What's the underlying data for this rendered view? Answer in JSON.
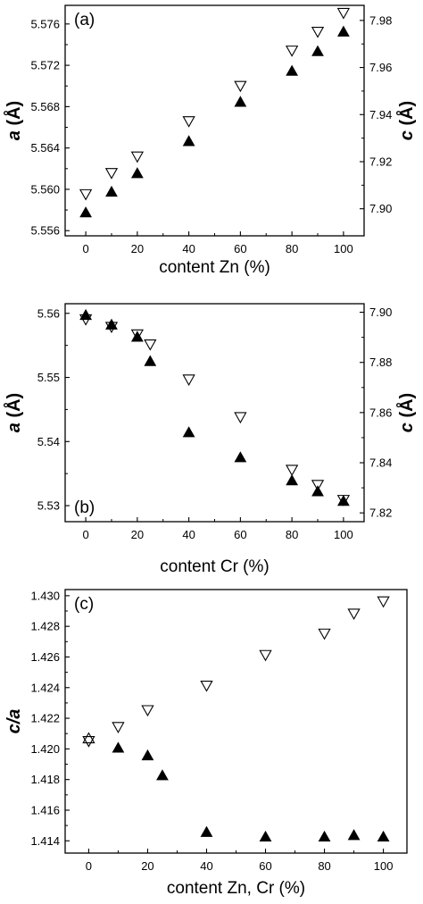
{
  "chart_data": [
    {
      "type": "scatter",
      "panel_label": "(a)",
      "xlabel": "content Zn (%)",
      "ylabel": "a (Å)",
      "ylabel_italic": "a",
      "ylabel_unit": " (Å)",
      "y2label": "c (Å)",
      "y2label_italic": "c",
      "y2label_unit": " (Å)",
      "xlim": [
        -8,
        108
      ],
      "ylim": [
        5.5555,
        5.5778
      ],
      "y2lim": [
        7.8885,
        7.9864
      ],
      "xticks": [
        0,
        20,
        40,
        60,
        80,
        100
      ],
      "yticks": [
        5.556,
        5.56,
        5.564,
        5.568,
        5.572,
        5.576
      ],
      "ytick_labels": [
        "5.556",
        "5.560",
        "5.564",
        "5.568",
        "5.572",
        "5.576"
      ],
      "y2ticks": [
        7.9,
        7.92,
        7.94,
        7.96,
        7.98
      ],
      "y2tick_labels": [
        "7.90",
        "7.92",
        "7.94",
        "7.96",
        "7.98"
      ],
      "series": [
        {
          "axis": "left",
          "marker": "filled-triangle-up",
          "color": "#000000",
          "x": [
            0,
            10,
            20,
            40,
            60,
            80,
            90,
            100
          ],
          "y": [
            5.5578,
            5.5598,
            5.5616,
            5.5647,
            5.5685,
            5.5715,
            5.5734,
            5.5753
          ]
        },
        {
          "axis": "right",
          "marker": "open-triangle-down",
          "color": "#000000",
          "x": [
            0,
            10,
            20,
            40,
            60,
            80,
            90,
            100
          ],
          "y": [
            7.906,
            7.915,
            7.922,
            7.937,
            7.952,
            7.967,
            7.975,
            7.983
          ]
        }
      ]
    },
    {
      "type": "scatter",
      "panel_label": "(b)",
      "xlabel": "content Cr (%)",
      "ylabel": "a (Å)",
      "ylabel_italic": "a",
      "ylabel_unit": " (Å)",
      "y2label": "c (Å)",
      "y2label_italic": "c",
      "y2label_unit": " (Å)",
      "xlim": [
        -8,
        108
      ],
      "ylim": [
        5.5275,
        5.5615
      ],
      "y2lim": [
        7.8165,
        7.9034
      ],
      "xticks": [
        0,
        20,
        40,
        60,
        80,
        100
      ],
      "yticks": [
        5.53,
        5.54,
        5.55,
        5.56
      ],
      "ytick_labels": [
        "5.53",
        "5.54",
        "5.55",
        "5.56"
      ],
      "y2ticks": [
        7.82,
        7.84,
        7.86,
        7.88,
        7.9
      ],
      "y2tick_labels": [
        "7.82",
        "7.84",
        "7.86",
        "7.88",
        "7.90"
      ],
      "series": [
        {
          "axis": "left",
          "marker": "filled-triangle-up",
          "color": "#000000",
          "x": [
            0,
            10,
            20,
            25,
            40,
            60,
            80,
            90,
            100
          ],
          "y": [
            5.5598,
            5.5583,
            5.5564,
            5.5526,
            5.5415,
            5.5376,
            5.534,
            5.5323,
            5.5308
          ]
        },
        {
          "axis": "right",
          "marker": "open-triangle-down",
          "color": "#000000",
          "x": [
            0,
            10,
            20,
            25,
            40,
            60,
            80,
            90,
            100
          ],
          "y": [
            7.897,
            7.894,
            7.891,
            7.887,
            7.873,
            7.858,
            7.837,
            7.831,
            7.825
          ]
        }
      ]
    },
    {
      "type": "scatter",
      "panel_label": "(c)",
      "xlabel": "content Zn, Cr (%)",
      "ylabel": "c/a",
      "ylabel_italic": "c/a",
      "ylabel_unit": "",
      "xlim": [
        -8,
        108
      ],
      "ylim": [
        1.4132,
        1.4304
      ],
      "xticks": [
        0,
        20,
        40,
        60,
        80,
        100
      ],
      "yticks": [
        1.414,
        1.416,
        1.418,
        1.42,
        1.422,
        1.424,
        1.426,
        1.428,
        1.43
      ],
      "ytick_labels": [
        "1.414",
        "1.416",
        "1.418",
        "1.420",
        "1.422",
        "1.424",
        "1.426",
        "1.428",
        "1.430"
      ],
      "series": [
        {
          "axis": "left",
          "marker": "filled-triangle-up",
          "color": "#000000",
          "x": [
            10,
            20,
            25,
            40,
            60,
            80,
            90,
            100
          ],
          "y": [
            1.4201,
            1.4196,
            1.4183,
            1.4146,
            1.4143,
            1.4143,
            1.4144,
            1.4143
          ]
        },
        {
          "axis": "left",
          "marker": "open-triangle-down",
          "color": "#000000",
          "x": [
            10,
            20,
            40,
            60,
            80,
            90,
            100
          ],
          "y": [
            1.4214,
            1.4225,
            1.4241,
            1.4261,
            1.4275,
            1.4288,
            1.4296
          ]
        },
        {
          "axis": "left",
          "marker": "star-of-david",
          "color": "#000000",
          "x": [
            0
          ],
          "y": [
            1.4206
          ]
        }
      ]
    }
  ]
}
